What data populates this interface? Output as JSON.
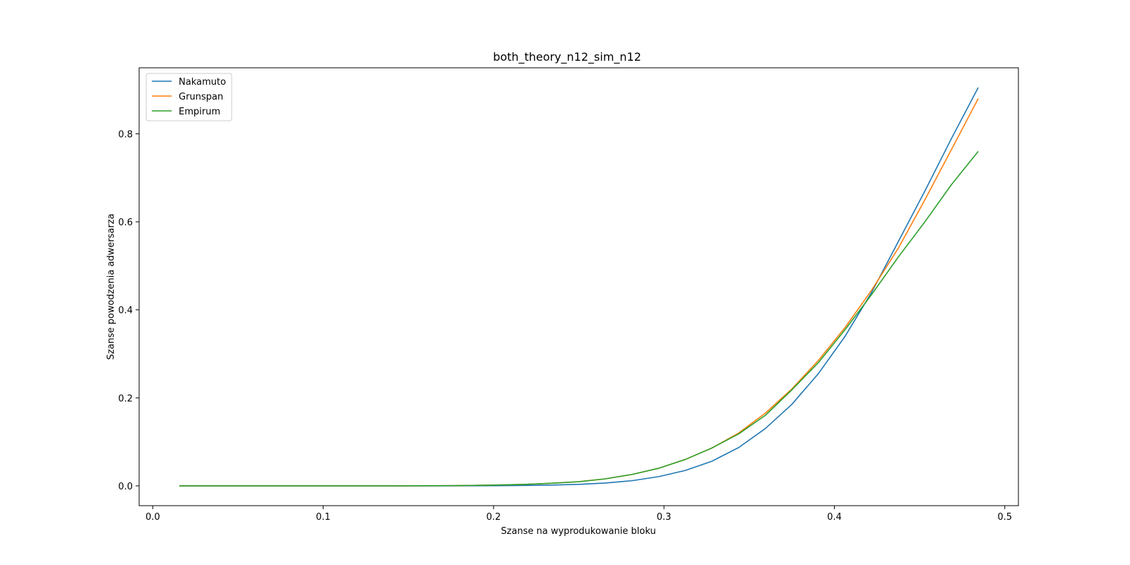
{
  "chart_data": {
    "type": "line",
    "title": "both_theory_n12_sim_n12",
    "xlabel": "Szanse na wyprodukowanie bloku",
    "ylabel": "Szanse powodzenia adwersarza",
    "xlim": [
      -0.008,
      0.508
    ],
    "ylim": [
      -0.045,
      0.95
    ],
    "xticks": [
      0.0,
      0.1,
      0.2,
      0.3,
      0.4,
      0.5
    ],
    "xtick_labels": [
      "0.0",
      "0.1",
      "0.2",
      "0.3",
      "0.4",
      "0.5"
    ],
    "yticks": [
      0.0,
      0.2,
      0.4,
      0.6,
      0.8
    ],
    "ytick_labels": [
      "0.0",
      "0.2",
      "0.4",
      "0.6",
      "0.8"
    ],
    "grid": false,
    "legend_position": "top-left",
    "x": [
      0.0156,
      0.0313,
      0.0469,
      0.0625,
      0.0781,
      0.0938,
      0.1094,
      0.125,
      0.1406,
      0.1563,
      0.1719,
      0.1875,
      0.2031,
      0.2188,
      0.2344,
      0.25,
      0.2656,
      0.2813,
      0.2969,
      0.3125,
      0.3281,
      0.3438,
      0.3594,
      0.375,
      0.3906,
      0.4063,
      0.4219,
      0.4375,
      0.4531,
      0.4688,
      0.4844
    ],
    "series": [
      {
        "name": "Nakamuto",
        "color": "#1f77b4",
        "values": [
          0,
          0,
          0,
          0,
          0,
          0,
          0,
          0,
          0,
          0,
          0.0001,
          0.0002,
          0.0005,
          0.001,
          0.0018,
          0.0035,
          0.0065,
          0.0118,
          0.021,
          0.035,
          0.056,
          0.087,
          0.13,
          0.185,
          0.255,
          0.34,
          0.44,
          0.555,
          0.67,
          0.79,
          0.905
        ]
      },
      {
        "name": "Grunspan",
        "color": "#ff7f0e",
        "values": [
          0,
          0,
          0,
          0,
          0,
          0,
          0,
          0,
          0,
          0.0002,
          0.0005,
          0.001,
          0.002,
          0.0035,
          0.006,
          0.0095,
          0.016,
          0.026,
          0.04,
          0.06,
          0.086,
          0.12,
          0.165,
          0.22,
          0.285,
          0.36,
          0.445,
          0.54,
          0.65,
          0.765,
          0.88
        ]
      },
      {
        "name": "Empirum",
        "color": "#2ca02c",
        "values": [
          0,
          0,
          0,
          0,
          0,
          0,
          0,
          0,
          0,
          0.0002,
          0.0005,
          0.001,
          0.002,
          0.0035,
          0.006,
          0.0095,
          0.016,
          0.026,
          0.04,
          0.06,
          0.086,
          0.118,
          0.16,
          0.218,
          0.28,
          0.355,
          0.435,
          0.52,
          0.6,
          0.685,
          0.76
        ]
      }
    ]
  }
}
